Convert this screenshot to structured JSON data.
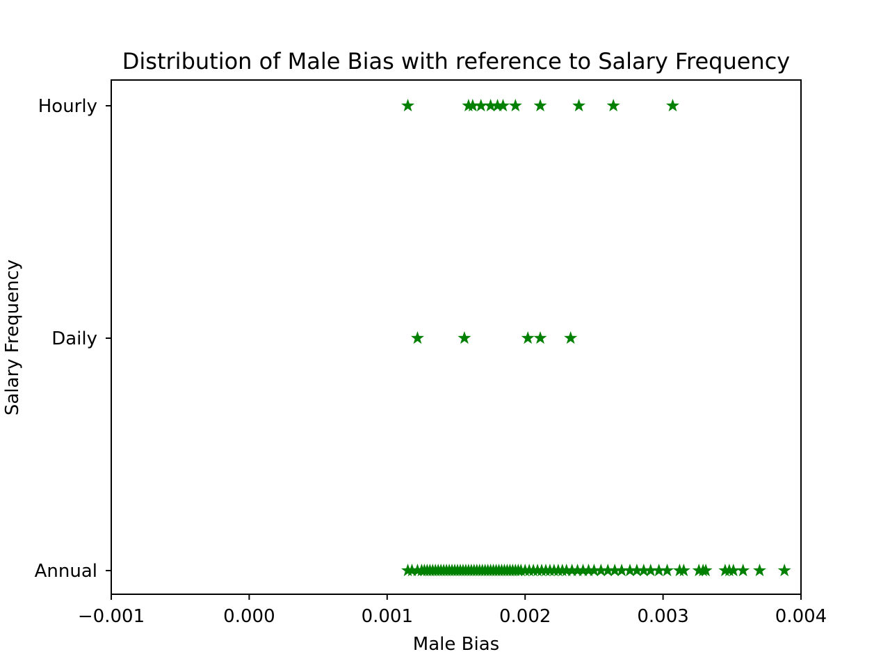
{
  "chart_data": {
    "type": "scatter",
    "title": "Distribution of Male Bias with reference to Salary Frequency",
    "xlabel": "Male Bias",
    "ylabel": "Salary Frequency",
    "xlim": [
      -0.001,
      0.004
    ],
    "x_ticks": [
      "−0.001",
      "0.000",
      "0.001",
      "0.002",
      "0.003",
      "0.004"
    ],
    "x_tick_values": [
      -0.001,
      0.0,
      0.001,
      0.002,
      0.003,
      0.004
    ],
    "categories": [
      "Annual",
      "Daily",
      "Hourly"
    ],
    "marker": "star",
    "marker_color": "#008000",
    "grid": false,
    "series": [
      {
        "category": "Hourly",
        "x": [
          0.00115,
          0.00159,
          0.00162,
          0.00168,
          0.00175,
          0.0018,
          0.00184,
          0.00193,
          0.00211,
          0.00239,
          0.00264,
          0.00307
        ]
      },
      {
        "category": "Daily",
        "x": [
          0.00122,
          0.00156,
          0.00202,
          0.00211,
          0.00233
        ]
      },
      {
        "category": "Annual",
        "x": [
          0.00115,
          0.00118,
          0.00122,
          0.00125,
          0.00127,
          0.00129,
          0.00131,
          0.00133,
          0.00135,
          0.00137,
          0.00139,
          0.00141,
          0.00143,
          0.00145,
          0.00147,
          0.00149,
          0.00151,
          0.00153,
          0.00155,
          0.00157,
          0.00159,
          0.00161,
          0.00163,
          0.00165,
          0.00167,
          0.00169,
          0.00171,
          0.00173,
          0.00175,
          0.00177,
          0.00179,
          0.00181,
          0.00183,
          0.00185,
          0.00187,
          0.00189,
          0.00191,
          0.00193,
          0.00195,
          0.00197,
          0.002,
          0.00203,
          0.00206,
          0.00209,
          0.00212,
          0.00215,
          0.00218,
          0.00221,
          0.00224,
          0.00227,
          0.0023,
          0.00234,
          0.00238,
          0.00242,
          0.00246,
          0.0025,
          0.00255,
          0.0026,
          0.00265,
          0.0027,
          0.00276,
          0.00281,
          0.00286,
          0.00291,
          0.00297,
          0.00303,
          0.00312,
          0.00315,
          0.00326,
          0.00329,
          0.00331,
          0.00345,
          0.00348,
          0.00351,
          0.00358,
          0.0037,
          0.00388
        ]
      }
    ]
  }
}
